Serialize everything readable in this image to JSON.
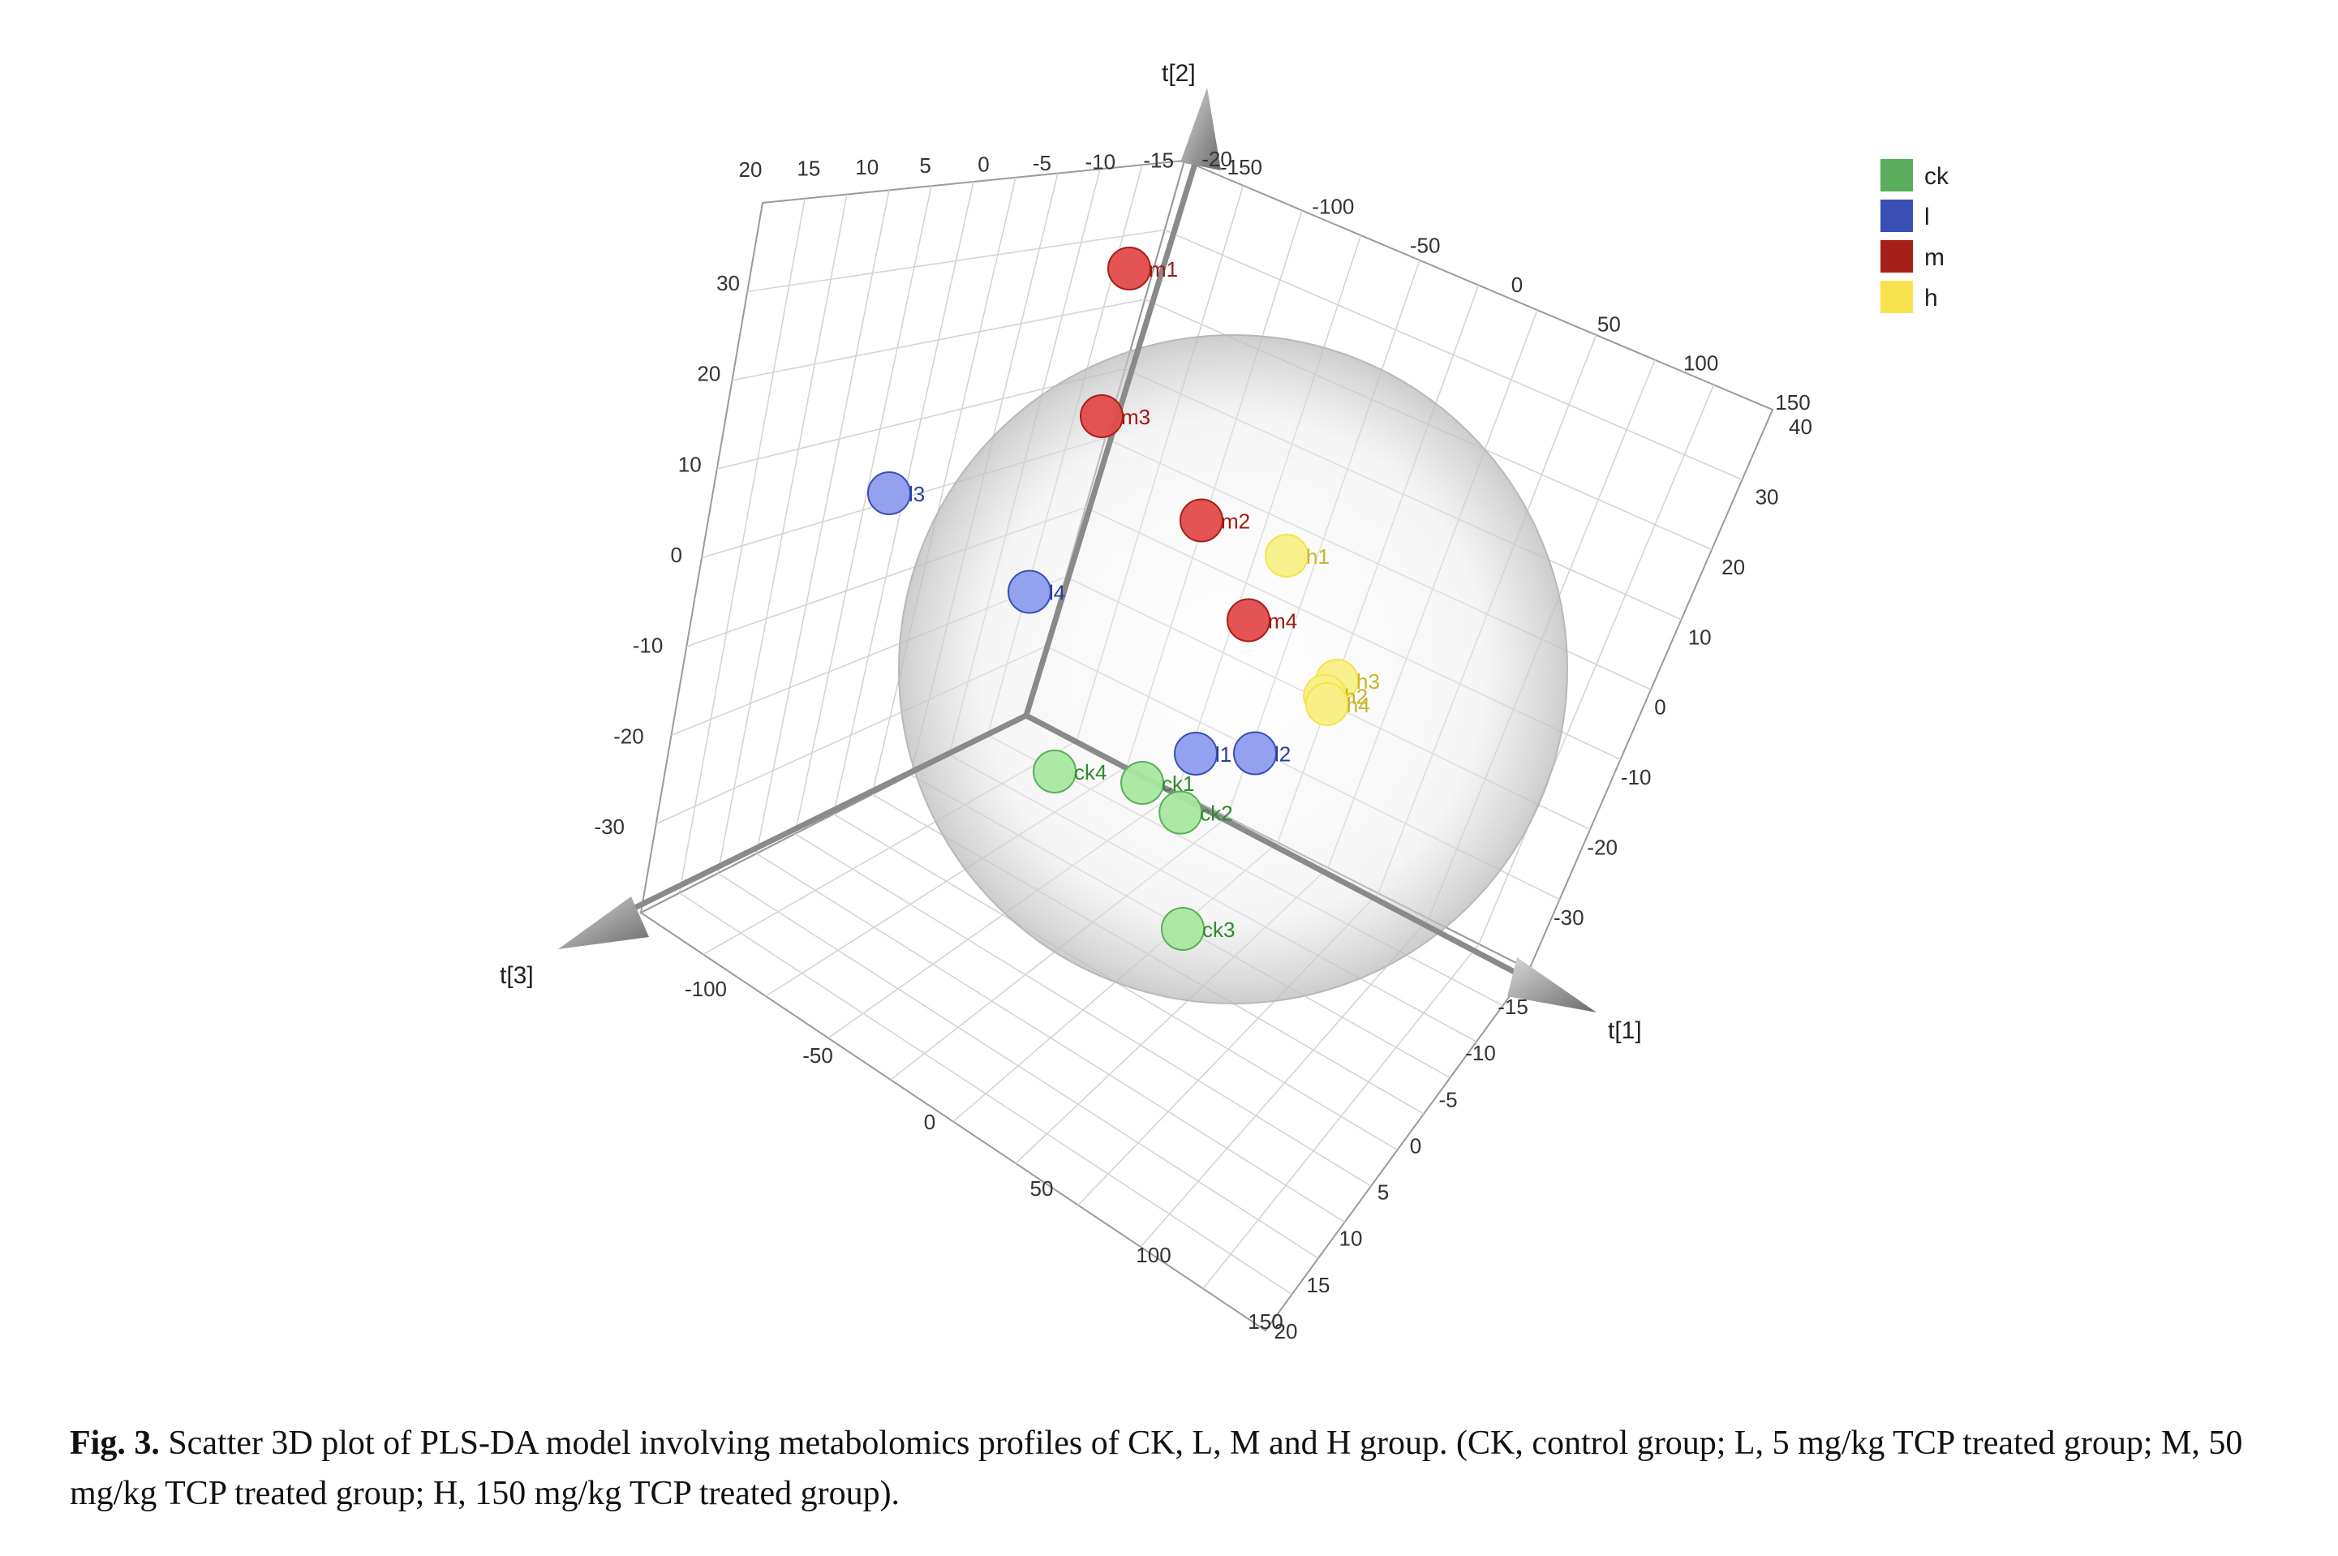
{
  "chart_data": {
    "type": "scatter",
    "dimensions": 3,
    "axes": {
      "t1": {
        "label": "t[1]",
        "ticks_a": [
          "150",
          "100",
          "50",
          "0",
          "-50",
          "-100"
        ],
        "ticks_b": [
          "-15",
          "-10",
          "-5",
          "0",
          "5",
          "10",
          "15",
          "20"
        ]
      },
      "t2": {
        "label": "t[2]",
        "ticks": [
          "40",
          "30",
          "20",
          "10",
          "0",
          "-10",
          "-20",
          "-30"
        ]
      },
      "t3": {
        "label": "t[3]",
        "ticks": [
          "-100",
          "-50",
          "0",
          "50",
          "100",
          "150"
        ]
      },
      "top_ticks": [
        "20",
        "15",
        "10",
        "5",
        "0",
        "-5",
        "-10",
        "-15",
        "-20"
      ],
      "left_ticks": [
        "30",
        "20",
        "10",
        "0",
        "-10",
        "-20",
        "-30"
      ],
      "top_right_ticks": [
        "-150",
        "-100",
        "-50",
        "0",
        "50",
        "100",
        "150"
      ]
    },
    "legend": [
      {
        "name": "ck",
        "color": "#5cae5c"
      },
      {
        "name": "l",
        "color": "#3a4fb5"
      },
      {
        "name": "m",
        "color": "#a62018"
      },
      {
        "name": "h",
        "color": "#f7e34d"
      }
    ],
    "legend_position": "top-right",
    "points": [
      {
        "label": "m1",
        "group": "m",
        "t1": -20,
        "t2": 30,
        "t3": 5
      },
      {
        "label": "m3",
        "group": "m",
        "t1": -30,
        "t2": 18,
        "t3": 0
      },
      {
        "label": "m2",
        "group": "m",
        "t1": -5,
        "t2": 12,
        "t3": 3
      },
      {
        "label": "m4",
        "group": "m",
        "t1": 5,
        "t2": 5,
        "t3": 2
      },
      {
        "label": "h1",
        "group": "h",
        "t1": 10,
        "t2": 9,
        "t3": -3
      },
      {
        "label": "h3",
        "group": "h",
        "t1": 20,
        "t2": 0,
        "t3": -5
      },
      {
        "label": "h2",
        "group": "h",
        "t1": 18,
        "t2": -1,
        "t3": -4
      },
      {
        "label": "h4",
        "group": "h",
        "t1": 17,
        "t2": -2,
        "t3": -6
      },
      {
        "label": "l4",
        "group": "l",
        "t1": -45,
        "t2": 5,
        "t3": 2
      },
      {
        "label": "l3",
        "group": "l",
        "t1": -80,
        "t2": 10,
        "t3": -2
      },
      {
        "label": "l2",
        "group": "l",
        "t1": 5,
        "t2": -5,
        "t3": 0
      },
      {
        "label": "l1",
        "group": "l",
        "t1": -10,
        "t2": -6,
        "t3": -2
      },
      {
        "label": "ck4",
        "group": "ck",
        "t1": -40,
        "t2": -8,
        "t3": 1
      },
      {
        "label": "ck1",
        "group": "ck",
        "t1": -20,
        "t2": -8,
        "t3": 1
      },
      {
        "label": "ck2",
        "group": "ck",
        "t1": -12,
        "t2": -10,
        "t3": 0
      },
      {
        "label": "ck3",
        "group": "ck",
        "t1": -10,
        "t2": -18,
        "t3": 2
      }
    ]
  },
  "caption": {
    "label": "Fig. 3.",
    "text": " Scatter 3D plot of PLS-DA model involving metabolomics profiles of CK, L, M and H group. (CK, control group; L, 5 mg/kg TCP treated group; M, 50 mg/kg TCP treated group; H, 150 mg/kg TCP treated group)."
  }
}
